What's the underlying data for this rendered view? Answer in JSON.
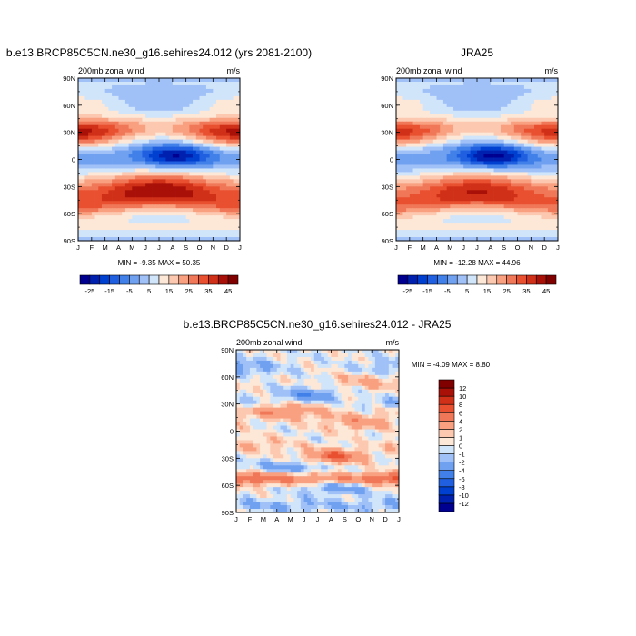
{
  "chart_data": [
    {
      "type": "heatmap",
      "title": "b.e13.BRCP85C5CN.ne30_g16.sehires24.012 (yrs 2081-2100)",
      "left_label": "200mb zonal wind",
      "right_label": "m/s",
      "x_ticks": [
        "J",
        "F",
        "M",
        "A",
        "M",
        "J",
        "J",
        "A",
        "S",
        "O",
        "N",
        "D",
        "J"
      ],
      "y_ticks": [
        "90N",
        "60N",
        "30N",
        "0",
        "30S",
        "60S",
        "90S"
      ],
      "stats": "MIN =  -9.35 MAX =  50.35",
      "min": -9.35,
      "max": 50.35,
      "colorbar": {
        "levels": [
          -30,
          -25,
          -20,
          -15,
          -10,
          -5,
          0,
          5,
          10,
          15,
          20,
          25,
          30,
          35,
          40,
          45,
          50
        ],
        "labels": [
          "-25",
          "-15",
          "-5",
          "5",
          "15",
          "25",
          "35",
          "45"
        ],
        "colors": [
          "#000090",
          "#0020b0",
          "#0040d0",
          "#2060e0",
          "#4080e8",
          "#70a0f0",
          "#a0c0f8",
          "#d0e4fa",
          "#fde8d8",
          "#fcc8b0",
          "#f8a080",
          "#f07858",
          "#e85030",
          "#d03018",
          "#a81008",
          "#800000"
        ]
      },
      "jets": [
        {
          "lat": 30,
          "month": 0.9,
          "peak": 48
        },
        {
          "lat": 30,
          "month": 12.0,
          "peak": 46
        },
        {
          "lat": -28,
          "month": 7.5,
          "peak": 50
        },
        {
          "lat": 0,
          "month": 7.2,
          "peak": -9
        },
        {
          "lat": -52,
          "month": 1.0,
          "peak": 33
        }
      ]
    },
    {
      "type": "heatmap",
      "title": "JRA25",
      "left_label": "200mb zonal wind",
      "right_label": "m/s",
      "x_ticks": [
        "J",
        "F",
        "M",
        "A",
        "M",
        "J",
        "J",
        "A",
        "S",
        "O",
        "N",
        "D",
        "J"
      ],
      "y_ticks": [
        "90N",
        "60N",
        "30N",
        "0",
        "30S",
        "60S",
        "90S"
      ],
      "stats": "MIN = -12.28 MAX =  44.96",
      "min": -12.28,
      "max": 44.96,
      "colorbar": {
        "levels": [
          -30,
          -25,
          -20,
          -15,
          -10,
          -5,
          0,
          5,
          10,
          15,
          20,
          25,
          30,
          35,
          40,
          45,
          50
        ],
        "labels": [
          "-25",
          "-15",
          "-5",
          "5",
          "15",
          "25",
          "35",
          "45"
        ],
        "colors": [
          "#000090",
          "#0020b0",
          "#0040d0",
          "#2060e0",
          "#4080e8",
          "#70a0f0",
          "#a0c0f8",
          "#d0e4fa",
          "#fde8d8",
          "#fcc8b0",
          "#f8a080",
          "#f07858",
          "#e85030",
          "#d03018",
          "#a81008",
          "#800000"
        ]
      },
      "jets": [
        {
          "lat": 30,
          "month": 1.0,
          "peak": 42
        },
        {
          "lat": 30,
          "month": 12.0,
          "peak": 40
        },
        {
          "lat": -28,
          "month": 7.5,
          "peak": 45
        },
        {
          "lat": 0,
          "month": 7.2,
          "peak": -12
        },
        {
          "lat": -52,
          "month": 1.0,
          "peak": 30
        }
      ]
    },
    {
      "type": "heatmap",
      "title": "b.e13.BRCP85C5CN.ne30_g16.sehires24.012 - JRA25",
      "left_label": "200mb zonal wind",
      "right_label": "m/s",
      "x_ticks": [
        "J",
        "F",
        "M",
        "A",
        "M",
        "J",
        "J",
        "A",
        "S",
        "O",
        "N",
        "D",
        "J"
      ],
      "y_ticks": [
        "90N",
        "60N",
        "30N",
        "0",
        "30S",
        "60S",
        "90S"
      ],
      "stats": "MIN =  -4.09 MAX =   8.80",
      "min": -4.09,
      "max": 8.8,
      "colorbar": {
        "levels": [
          -14,
          -12,
          -10,
          -8,
          -6,
          -4,
          -2,
          -1,
          0,
          1,
          2,
          4,
          6,
          8,
          10,
          12,
          14
        ],
        "labels": [
          "-12",
          "-10",
          "-8",
          "-6",
          "-4",
          "-2",
          "-1",
          "0",
          "1",
          "2",
          "4",
          "6",
          "8",
          "10",
          "12"
        ],
        "colors": [
          "#000090",
          "#0020b0",
          "#0040d0",
          "#2060e0",
          "#4080e8",
          "#70a0f0",
          "#a0c0f8",
          "#d0e4fa",
          "#fde8d8",
          "#fcc8b0",
          "#f8a080",
          "#f07858",
          "#e85030",
          "#d03018",
          "#a81008",
          "#800000"
        ]
      }
    }
  ]
}
